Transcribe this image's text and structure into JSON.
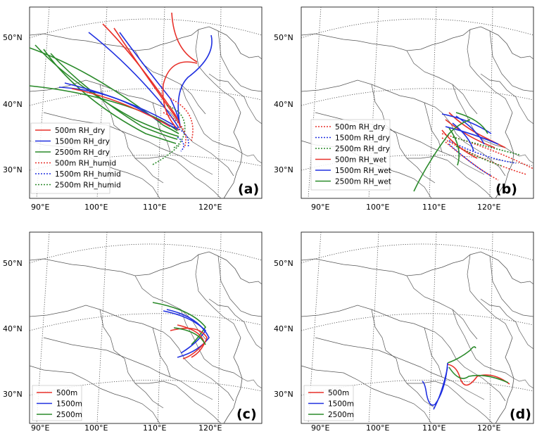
{
  "panels": [
    {
      "id": "a",
      "label": "(a)",
      "lat_labels": [
        "50°N",
        "40°N",
        "30°N"
      ],
      "lon_labels": [
        "90°E",
        "100°E",
        "110°E",
        "120°E"
      ],
      "legend": [
        {
          "text": "500m RH_dry",
          "color": "#e8312a",
          "style": "solid"
        },
        {
          "text": "1500m RH_dry",
          "color": "#2030e0",
          "style": "solid"
        },
        {
          "text": "2500m RH_dry",
          "color": "#2a8a2a",
          "style": "solid"
        },
        {
          "text": "500m RH_humid",
          "color": "#e8312a",
          "style": "dotted"
        },
        {
          "text": "1500m RH_humid",
          "color": "#2030e0",
          "style": "dotted"
        },
        {
          "text": "2500m RH_humid",
          "color": "#2a8a2a",
          "style": "dotted"
        }
      ]
    },
    {
      "id": "b",
      "label": "(b)",
      "lat_labels": [
        "50°N",
        "40°N",
        "30°N"
      ],
      "lon_labels": [
        "90°E",
        "100°E",
        "110°E",
        "120°E"
      ],
      "legend": [
        {
          "text": "500m RH_dry",
          "color": "#e8312a",
          "style": "dotted"
        },
        {
          "text": "1500m RH_dry",
          "color": "#2030e0",
          "style": "dotted"
        },
        {
          "text": "2500m RH_dry",
          "color": "#2a8a2a",
          "style": "dotted"
        },
        {
          "text": "500m RH_wet",
          "color": "#e8312a",
          "style": "solid"
        },
        {
          "text": "1500m RH_wet",
          "color": "#2030e0",
          "style": "solid"
        },
        {
          "text": "2500m RH_wet",
          "color": "#2a8a2a",
          "style": "solid"
        }
      ]
    },
    {
      "id": "c",
      "label": "(c)",
      "lat_labels": [
        "50°N",
        "40°N",
        "30°N"
      ],
      "lon_labels": [
        "90°E",
        "100°E",
        "110°E",
        "120°E"
      ],
      "legend": [
        {
          "text": "500m",
          "color": "#e8312a",
          "style": "solid"
        },
        {
          "text": "1500m",
          "color": "#2030e0",
          "style": "solid"
        },
        {
          "text": "2500m",
          "color": "#2a8a2a",
          "style": "solid"
        }
      ]
    },
    {
      "id": "d",
      "label": "(d)",
      "lat_labels": [
        "50°N",
        "40°N",
        "30°N"
      ],
      "lon_labels": [
        "90°E",
        "100°E",
        "110°E",
        "120°E"
      ],
      "legend": [
        {
          "text": "500m",
          "color": "#e8312a",
          "style": "solid"
        },
        {
          "text": "1500m",
          "color": "#2030e0",
          "style": "solid"
        },
        {
          "text": "2500m",
          "color": "#2a8a2a",
          "style": "solid"
        }
      ]
    }
  ],
  "colors": {
    "red": "#e8312a",
    "blue": "#2030e0",
    "green": "#2a8a2a",
    "border": "#555555",
    "grid": "#444444"
  }
}
